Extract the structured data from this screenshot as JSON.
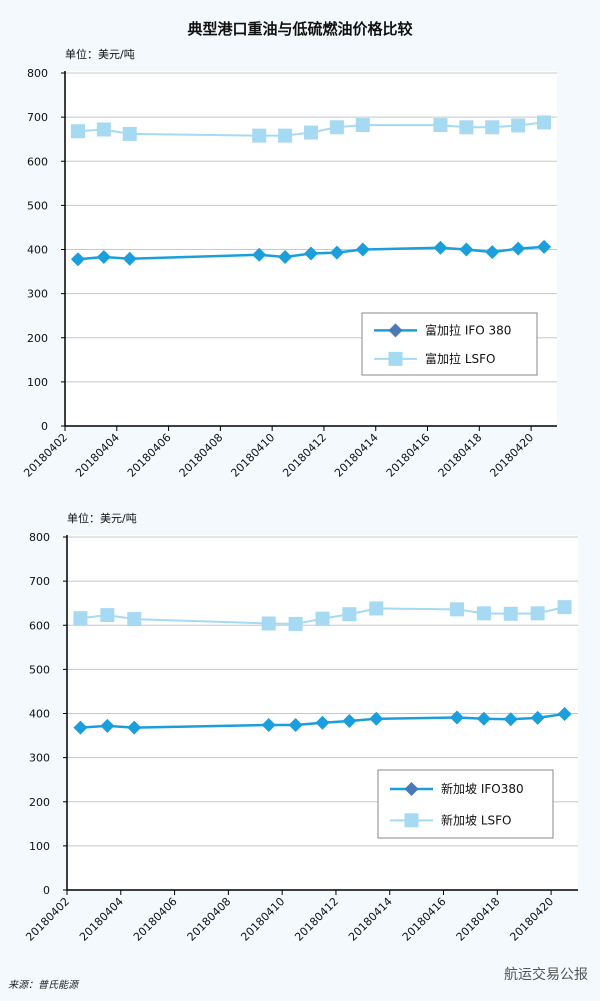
{
  "title": "典型港口重油与低硫燃油价格比较",
  "source": "来源：普氏能源",
  "watermark": "航运交易公报",
  "colors": {
    "ifo": "#1a9fdc",
    "ifo_legend_marker": "#4a78b8",
    "lsfo": "#a6d9f2"
  },
  "chart_data": [
    {
      "type": "line",
      "unit_label": "单位：美元/吨",
      "ylim": [
        0,
        800
      ],
      "yticks": [
        0,
        100,
        200,
        300,
        400,
        500,
        600,
        700,
        800
      ],
      "xticks": [
        "20180402",
        "20180404",
        "20180406",
        "20180408",
        "20180410",
        "20180412",
        "20180414",
        "20180416",
        "20180418",
        "20180420"
      ],
      "x": [
        "20180402",
        "20180403",
        "20180404",
        "20180409",
        "20180410",
        "20180411",
        "20180412",
        "20180413",
        "20180416",
        "20180417",
        "20180418",
        "20180419",
        "20180420"
      ],
      "legend": "center-right",
      "series": [
        {
          "name": "富加拉 IFO 380",
          "values": [
            378,
            383,
            379,
            388,
            383,
            391,
            393,
            400,
            404,
            400,
            394,
            402,
            406
          ]
        },
        {
          "name": "富加拉 LSFO",
          "values": [
            668,
            672,
            662,
            658,
            658,
            665,
            677,
            682,
            682,
            677,
            677,
            681,
            688
          ]
        }
      ]
    },
    {
      "type": "line",
      "unit_label": "单位：美元/吨",
      "ylim": [
        0,
        800
      ],
      "yticks": [
        0,
        100,
        200,
        300,
        400,
        500,
        600,
        700,
        800
      ],
      "xticks": [
        "20180402",
        "20180404",
        "20180406",
        "20180408",
        "20180410",
        "20180412",
        "20180414",
        "20180416",
        "20180418",
        "20180420"
      ],
      "x": [
        "20180402",
        "20180403",
        "20180404",
        "20180409",
        "20180410",
        "20180411",
        "20180412",
        "20180413",
        "20180416",
        "20180417",
        "20180418",
        "20180419",
        "20180420"
      ],
      "legend": "bottom-right",
      "series": [
        {
          "name": "新加坡 IFO380",
          "values": [
            368,
            372,
            368,
            374,
            374,
            379,
            383,
            388,
            391,
            388,
            387,
            390,
            399
          ]
        },
        {
          "name": "新加坡 LSFO",
          "values": [
            616,
            623,
            614,
            604,
            603,
            615,
            625,
            638,
            636,
            627,
            626,
            627,
            641
          ]
        }
      ]
    }
  ]
}
